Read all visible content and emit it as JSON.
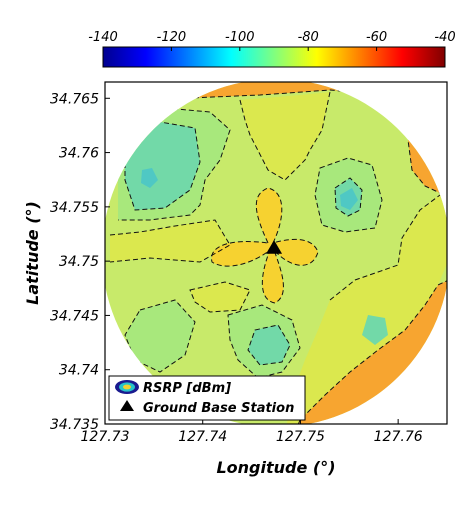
{
  "chart_data": {
    "type": "heatmap",
    "title": "",
    "xlabel": "Longitude (°)",
    "ylabel": "Latitude (°)",
    "xlim": [
      127.73,
      127.765
    ],
    "ylim": [
      34.735,
      34.7665
    ],
    "xticks": [
      "127.73",
      "127.74",
      "127.75",
      "127.76"
    ],
    "yticks": [
      "34.735",
      "34.74",
      "34.745",
      "34.75",
      "34.755",
      "34.76",
      "34.765"
    ],
    "colorbar": {
      "label": "RSRP [dBm]",
      "range": [
        -140,
        -40
      ],
      "ticks": [
        "-140",
        "-120",
        "-100",
        "-80",
        "-60",
        "-40"
      ],
      "colormap": "jet"
    },
    "base_station": {
      "x": 127.7473,
      "y": 34.7512,
      "label": "Ground Base Station"
    },
    "rsrp_levels": [
      {
        "region": "outer-edge",
        "rsrp": -60
      },
      {
        "region": "general-area",
        "rsrp": -70
      },
      {
        "region": "mid-lobes",
        "rsrp": -80
      },
      {
        "region": "shadow-pockets",
        "rsrp": -90
      },
      {
        "region": "deep-pockets",
        "rsrp": -100
      },
      {
        "region": "center-petals",
        "rsrp": -65
      }
    ],
    "grid": false,
    "legend": {
      "position": "bottom-left",
      "entries": [
        "RSRP [dBm]",
        "Ground Base Station"
      ]
    }
  },
  "colors": {
    "c_minus60": "#f7a530",
    "c_minus65": "#f6d230",
    "c_minus70": "#dbe84e",
    "c_minus80": "#a8e87c",
    "c_minus90": "#72d9a8",
    "c_minus100": "#4fc8c4"
  }
}
